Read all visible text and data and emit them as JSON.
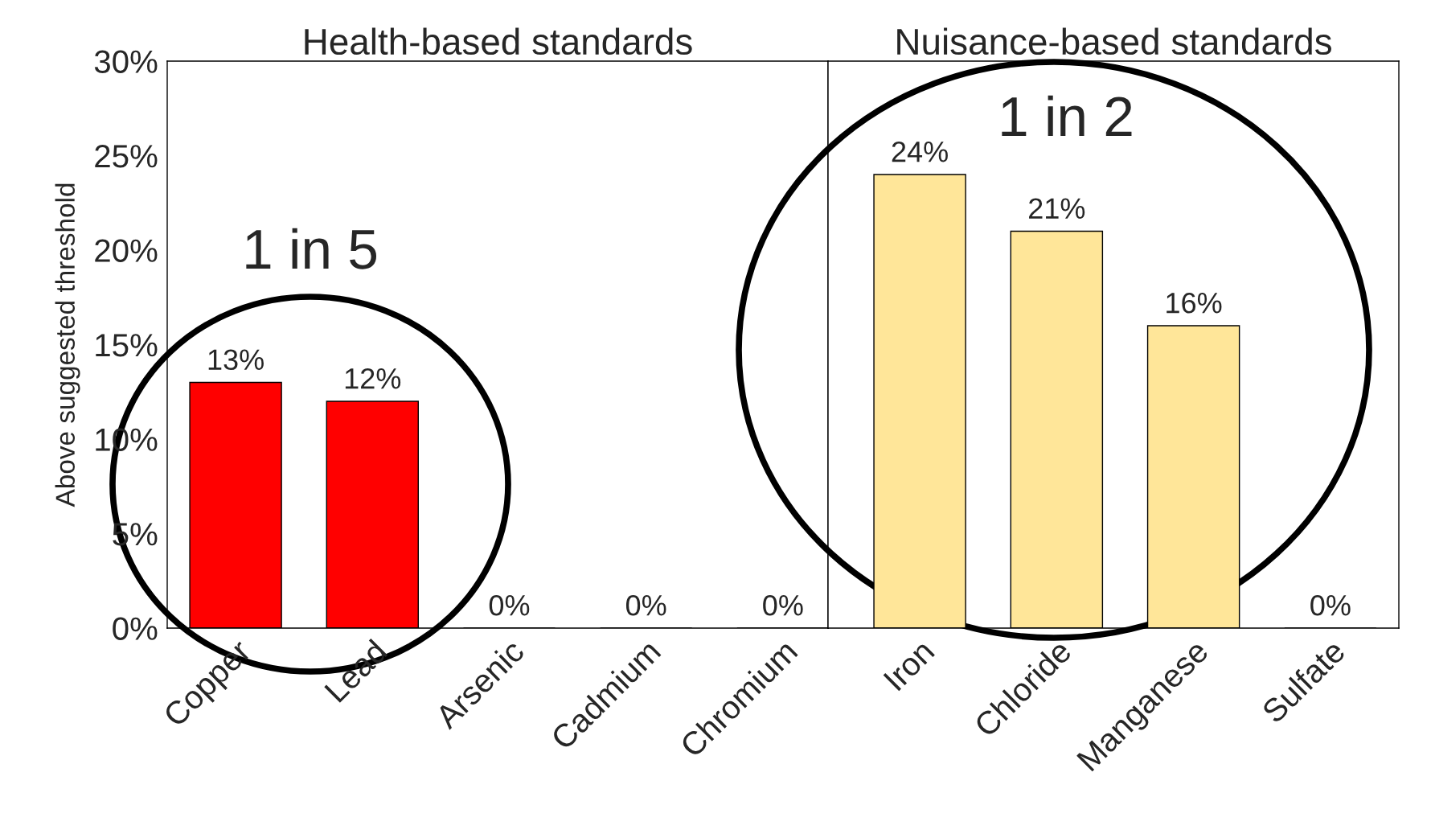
{
  "chart_data": [
    {
      "type": "bar",
      "title": "Health-based standards",
      "ylabel": "Above suggested threshold",
      "categories": [
        "Copper",
        "Lead",
        "Arsenic",
        "Cadmium",
        "Chromium"
      ],
      "values": [
        13,
        12,
        0,
        0,
        0
      ],
      "color": "#ff0000",
      "value_labels": [
        "13%",
        "12%",
        "0%",
        "0%",
        "0%"
      ],
      "ylim": [
        0,
        30
      ],
      "yticks": [
        {
          "value": 0,
          "label": "0%"
        },
        {
          "value": 5,
          "label": "5%"
        },
        {
          "value": 10,
          "label": "10%"
        },
        {
          "value": 15,
          "label": "15%"
        },
        {
          "value": 20,
          "label": "20%"
        },
        {
          "value": 25,
          "label": "25%"
        },
        {
          "value": 30,
          "label": "30%"
        }
      ],
      "annotations": [
        "1 in 5"
      ],
      "grid": false,
      "legend": false
    },
    {
      "type": "bar",
      "title": "Nuisance-based standards",
      "categories": [
        "Iron",
        "Chloride",
        "Manganese",
        "Sulfate"
      ],
      "values": [
        24,
        21,
        16,
        0
      ],
      "color": "#ffe699",
      "value_labels": [
        "24%",
        "21%",
        "16%",
        "0%"
      ],
      "ylim": [
        0,
        30
      ],
      "tick_labels": "x",
      "annotations": [
        "1 in 2"
      ],
      "grid": false,
      "legend": false
    }
  ]
}
